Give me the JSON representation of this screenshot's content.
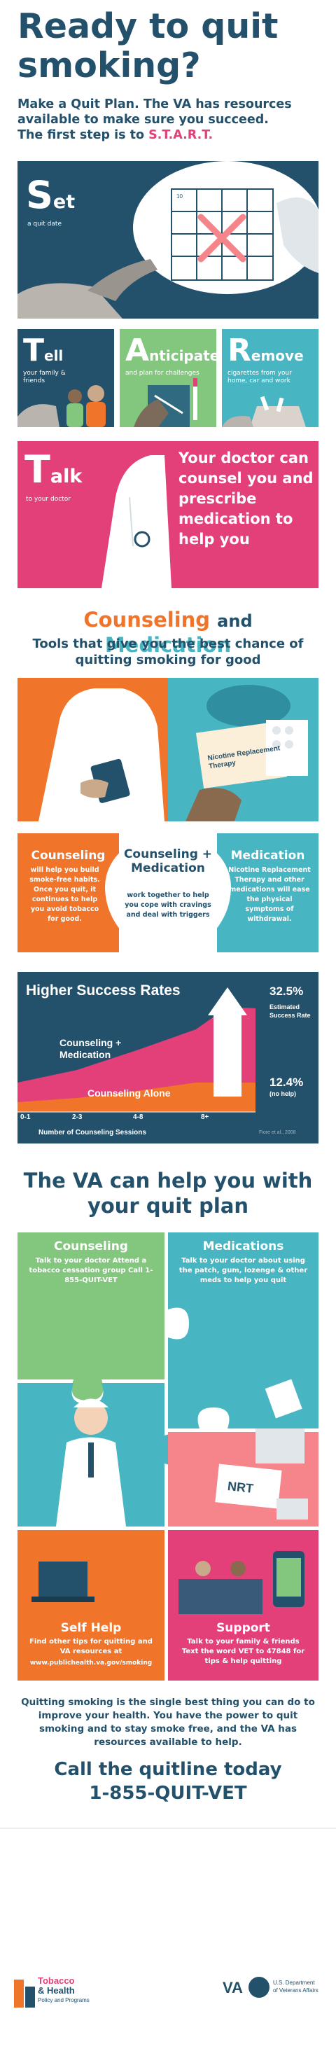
{
  "header": {
    "title": "Ready to quit smoking?",
    "subtitle": "Make a Quit Plan. The VA has resources available to make sure you succeed.",
    "start_prefix": "The first step is to",
    "start_word": "S.T.A.R.T."
  },
  "start": {
    "set": {
      "letter": "S",
      "rest": "et",
      "desc": "a quit date",
      "calendar_day": "10"
    },
    "tell": {
      "letter": "T",
      "rest": "ell",
      "desc": "your family & friends"
    },
    "anticipate": {
      "letter": "A",
      "rest": "nticipate",
      "desc": "and plan for challenges"
    },
    "remove": {
      "letter": "R",
      "rest": "emove",
      "desc": "cigarettes from your home, car and work"
    },
    "talk": {
      "letter": "T",
      "rest": "alk",
      "desc": "to your doctor",
      "message": "Your doctor can counsel you and prescribe medication to help you"
    }
  },
  "counseling_medication": {
    "title_a": "Counseling",
    "title_and": "and",
    "title_b": "Medication",
    "subtitle": "Tools that give you the best chance of quitting smoking for good",
    "nrt_box": "Nicotine Replacement Therapy",
    "cards": [
      {
        "title": "Counseling",
        "text": "will help you build smoke-free habits. Once you quit, it continues to help you avoid tobacco for good."
      },
      {
        "title": "Counseling + Medication",
        "text": "work together to help you cope with cravings and deal with triggers"
      },
      {
        "title": "Medication",
        "text": "Nicotine Replacement Therapy and other medications will ease the physical symptoms of withdrawal."
      }
    ]
  },
  "chart_data": {
    "type": "area",
    "title": "Higher Success Rates",
    "xlabel": "Number of Counseling Sessions",
    "categories": [
      "0-1",
      "2-3",
      "4-8",
      "8+"
    ],
    "series": [
      {
        "name": "Counseling + Medication",
        "end_label": "32.5%"
      },
      {
        "name": "Counseling Alone",
        "end_label": "12.4%"
      }
    ],
    "annotation_top": "32.5%",
    "annotation_top_desc": "Estimated Success Rate",
    "annotation_bottom": "12.4%",
    "annotation_bottom_desc": "(no help)",
    "source": "Fiore et al., 2008"
  },
  "va_help": {
    "title": "The VA can help you with your quit plan",
    "counseling": {
      "title": "Counseling",
      "text": "Talk to your doctor Attend a tobacco cessation group Call 1-855-QUIT-VET"
    },
    "medications": {
      "title": "Medications",
      "text": "Talk to your doctor about using the patch, gum, lozenge & other meds to help you quit"
    },
    "nrt": "NRT",
    "self_help": {
      "title": "Self Help",
      "text": "Find other tips for quitting and VA resources at",
      "url": "www.publichealth.va.gov/smoking"
    },
    "support": {
      "title": "Support",
      "text": "Talk to your family & friends Text the word VET to 47848 for tips & help quitting"
    }
  },
  "closing": "Quitting smoking is the single best thing you can do to improve your health. You have the power to quit smoking and to stay smoke free, and the VA has resources available to help.",
  "call": {
    "line1": "Call the quitline today",
    "line2": "1-855-QUIT-VET"
  },
  "footer": {
    "logo1a": "Tobacco",
    "logo1b": "& Health",
    "logo1c": "Policy and Programs",
    "va": "VA",
    "dept1": "U.S. Department",
    "dept2": "of Veterans Affairs"
  },
  "colors": {
    "navy": "#23506a",
    "pink": "#e3407a",
    "orange": "#f0742a",
    "green": "#83c77e",
    "teal": "#48b6c2",
    "cream": "#fcefd9"
  }
}
